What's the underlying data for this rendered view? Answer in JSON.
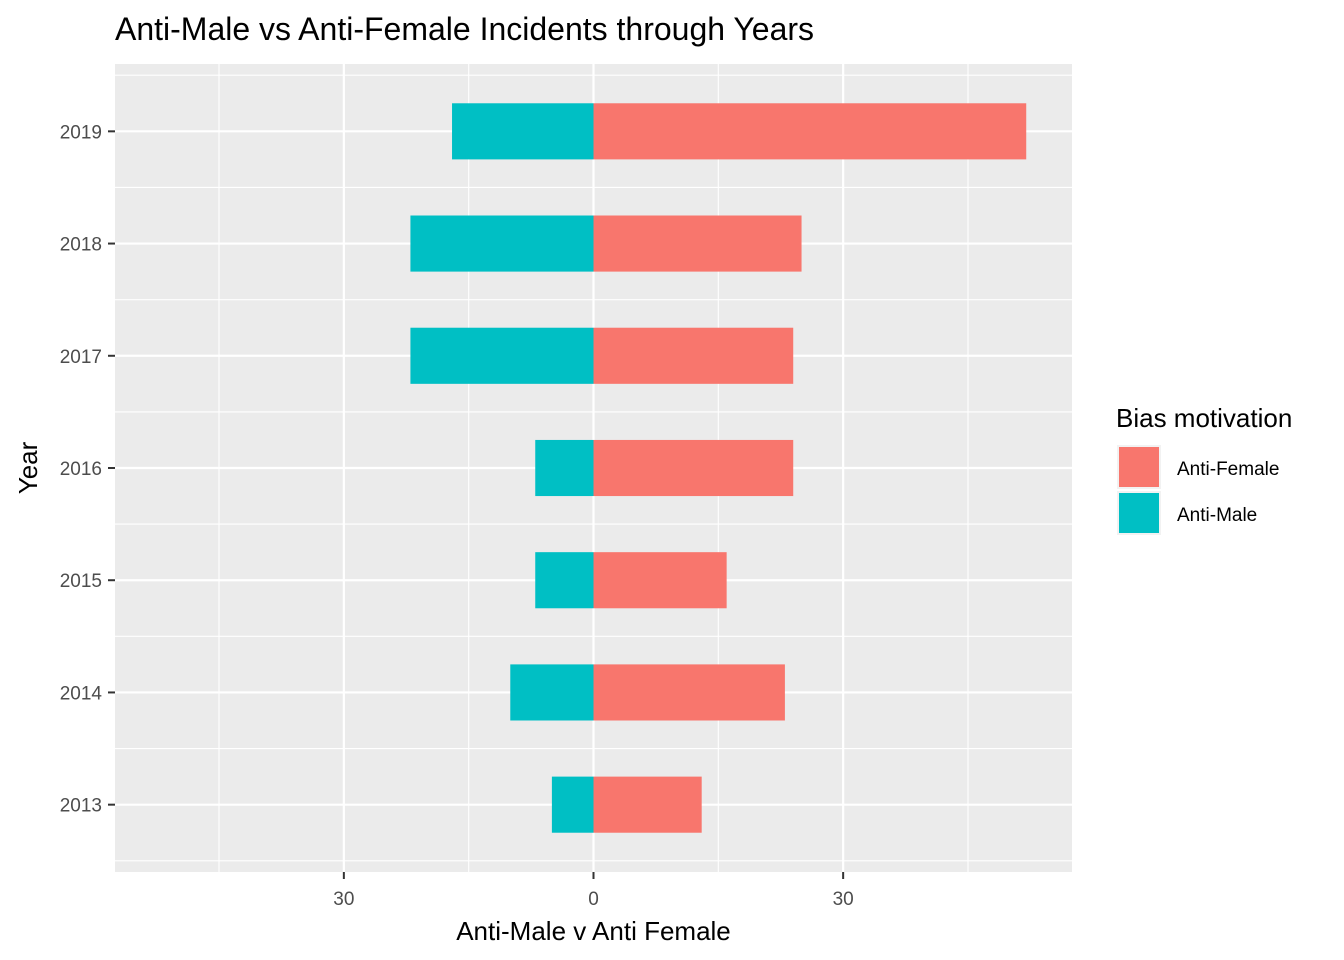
{
  "chart_data": {
    "type": "bar",
    "orientation": "horizontal",
    "diverging": true,
    "title": "Anti-Male vs Anti-Female Incidents through Years",
    "xlabel": "Anti-Male v Anti Female",
    "ylabel": "Year",
    "categories": [
      "2013",
      "2014",
      "2015",
      "2016",
      "2017",
      "2018",
      "2019"
    ],
    "series": [
      {
        "name": "Anti-Female",
        "color": "#F8766D",
        "values": [
          13,
          23,
          16,
          24,
          24,
          25,
          52
        ]
      },
      {
        "name": "Anti-Male",
        "color": "#00BFC4",
        "values": [
          -5,
          -10,
          -7,
          -7,
          -22,
          -22,
          -17
        ]
      }
    ],
    "xlim": [
      -57.5,
      57.5
    ],
    "x_ticks": [
      {
        "value": -30,
        "label": "30"
      },
      {
        "value": 0,
        "label": "0"
      },
      {
        "value": 30,
        "label": "30"
      }
    ],
    "x_minor_ticks": [
      -45,
      -15,
      15,
      45
    ],
    "grid": true,
    "panel_background": "#EBEBEB",
    "legend": {
      "title": "Bias motivation",
      "placement": "right",
      "entries": [
        "Anti-Female",
        "Anti-Male"
      ]
    }
  }
}
